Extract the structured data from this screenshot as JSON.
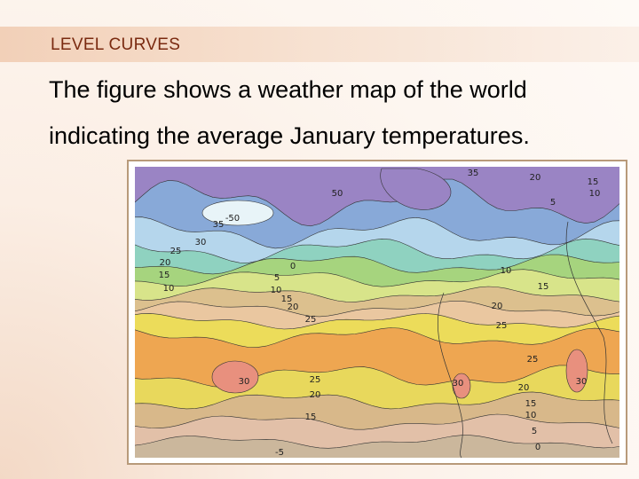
{
  "header": {
    "title": "LEVEL CURVES"
  },
  "body": {
    "lines": [
      "The figure shows a weather map of the world",
      "indicating the average January temperatures."
    ]
  },
  "map": {
    "labels": [
      "35",
      "50",
      "-50",
      "35",
      "30",
      "20",
      "15",
      "10",
      "5",
      "0",
      "25",
      "20",
      "15",
      "10",
      "5",
      "10",
      "15",
      "20",
      "25",
      "10",
      "15",
      "20",
      "25",
      "30",
      "25",
      "20",
      "15",
      "30",
      "30",
      "25",
      "20",
      "15",
      "10",
      "5",
      "0",
      "-5"
    ]
  }
}
